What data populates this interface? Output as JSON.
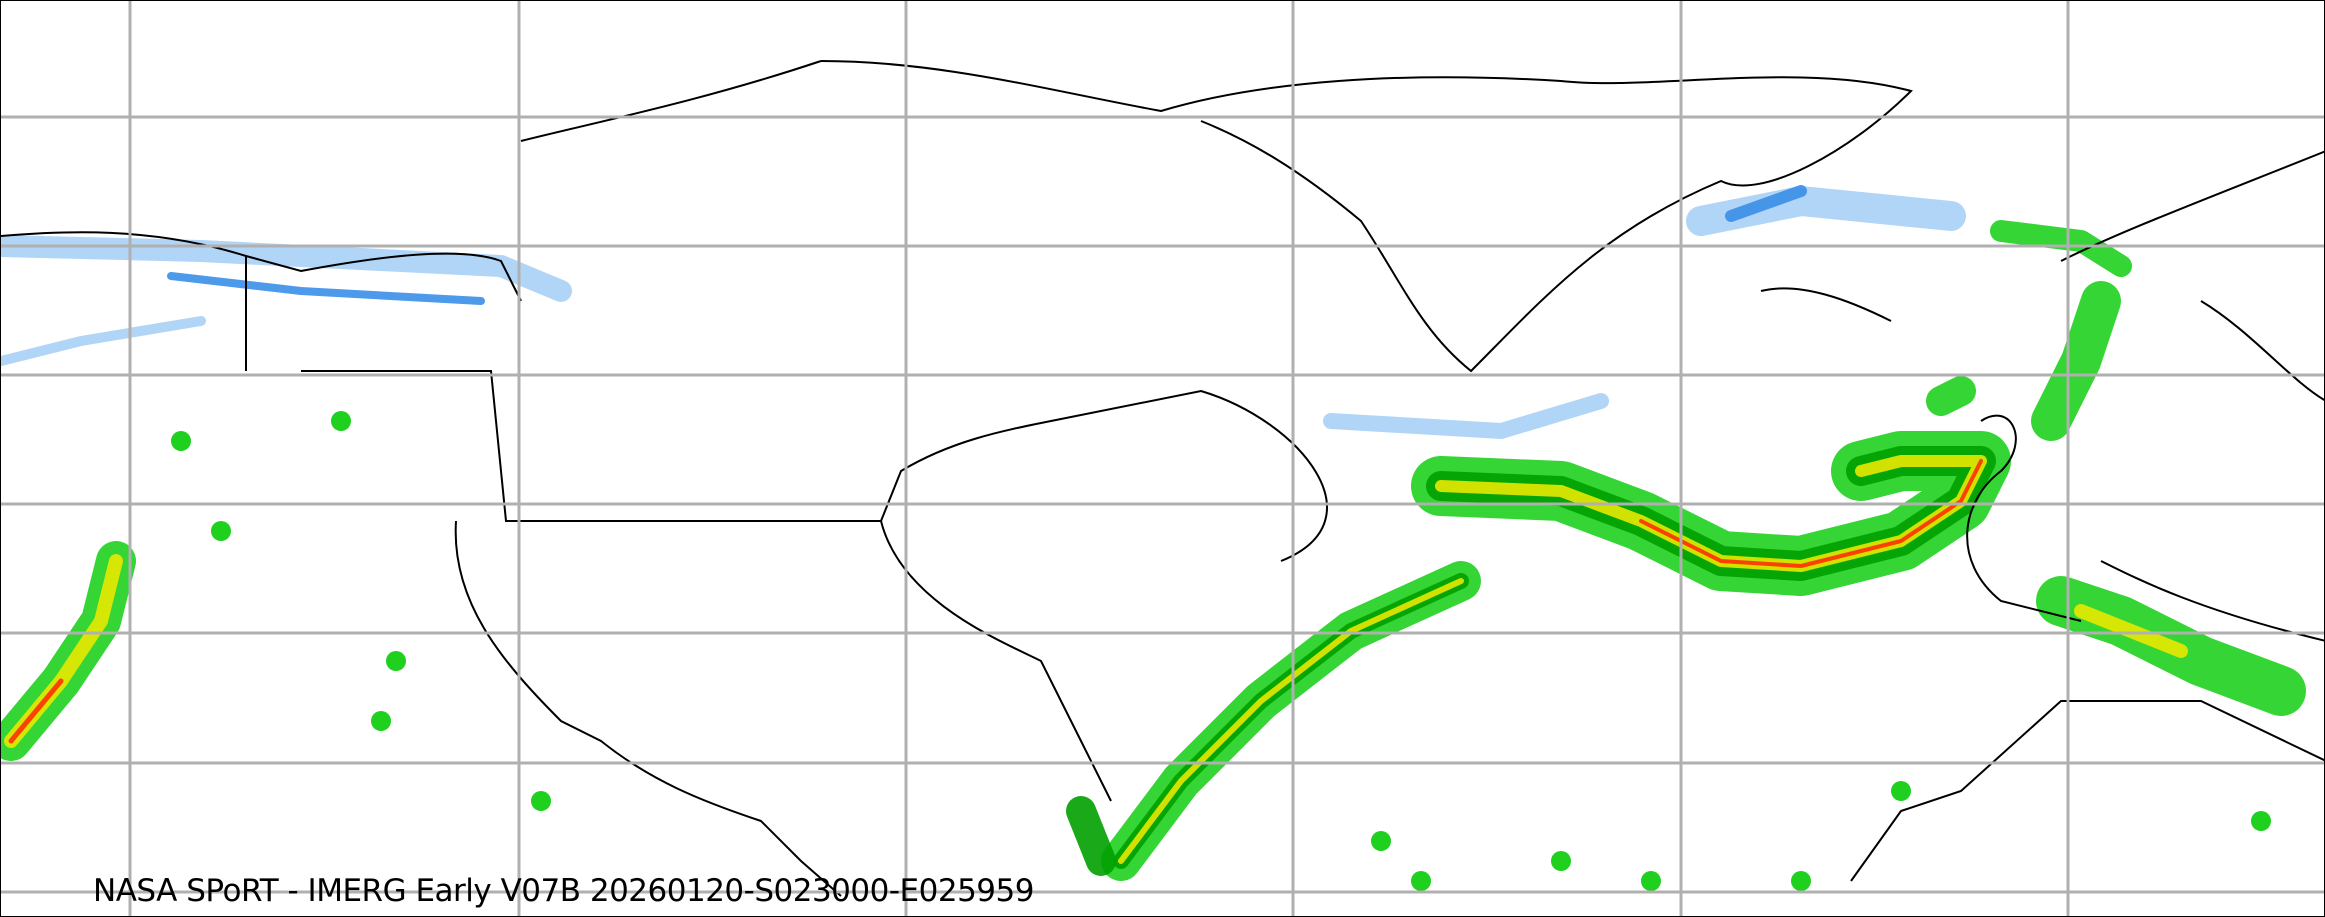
{
  "caption": "NASA SPoRT - IMERG Early V07B 20260120-S023000-E025959",
  "map": {
    "product": "IMERG Early precipitation",
    "gridlines": true,
    "colors": {
      "light_snow": "#a8d0f5",
      "snow": "#3a8ee8",
      "heavy_snow": "#1060c8",
      "light_rain": "#1fd01f",
      "rain": "#00a000",
      "moderate_rain": "#e8e800",
      "heavy_rain": "#ff3000",
      "coastline": "#000000",
      "grid": "#b0b0b0"
    }
  }
}
